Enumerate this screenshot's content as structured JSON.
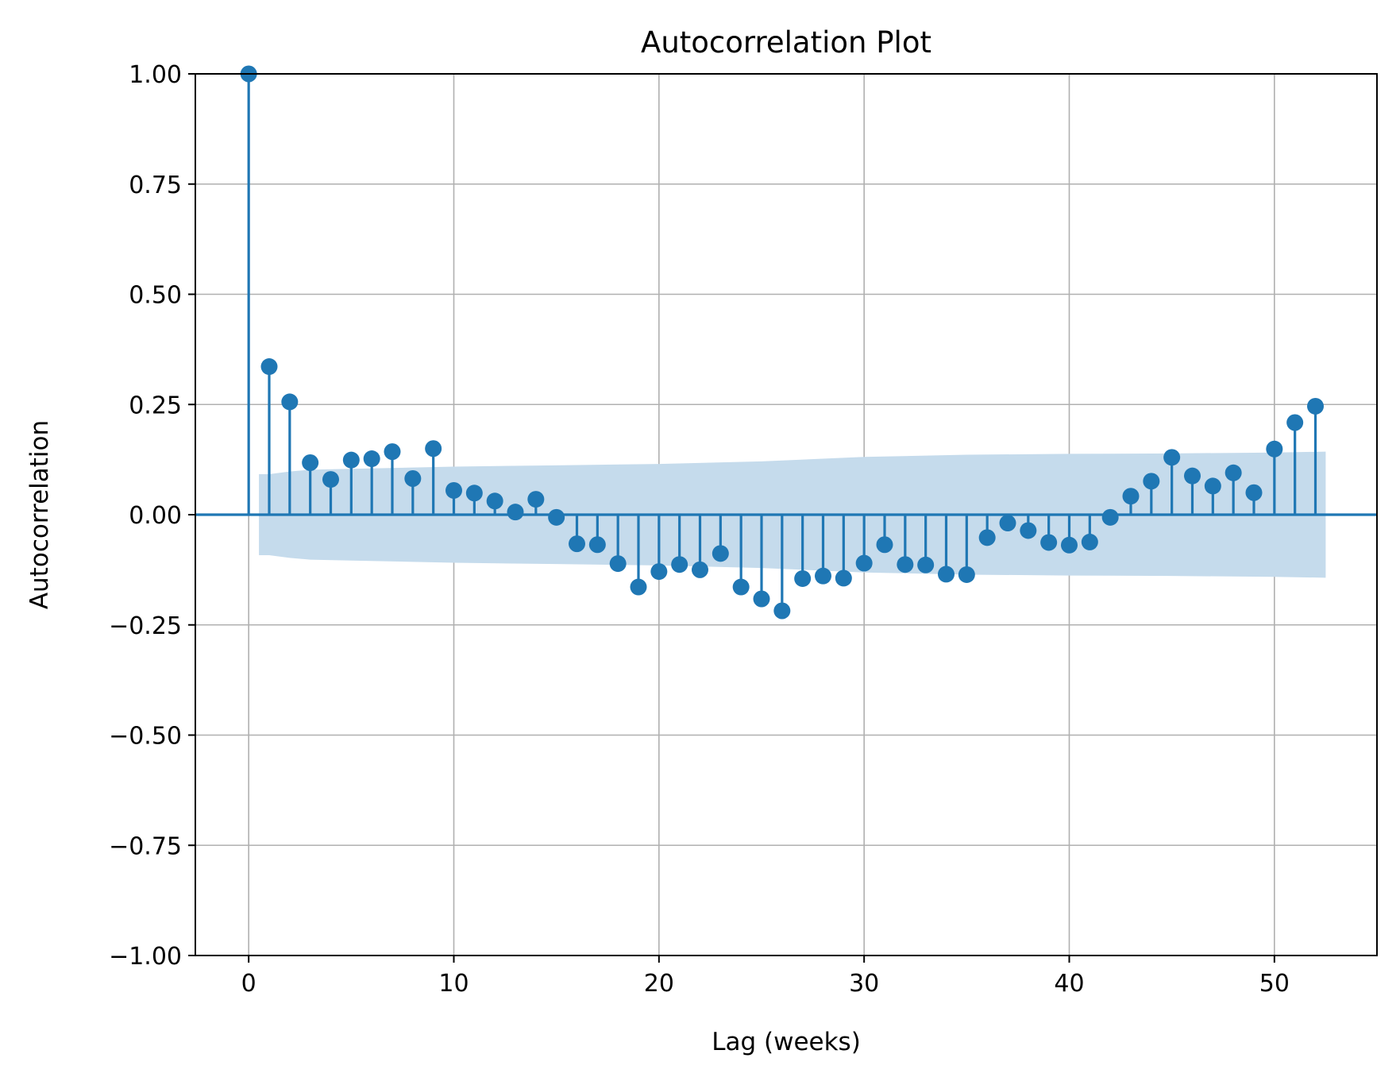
{
  "chart_data": {
    "type": "stem",
    "title": "Autocorrelation Plot",
    "xlabel": "Lag (weeks)",
    "ylabel": "Autocorrelation",
    "xlim": [
      -2.6,
      55
    ],
    "ylim": [
      -1.0,
      1.0
    ],
    "xticks": [
      0,
      10,
      20,
      30,
      40,
      50
    ],
    "xtick_labels": [
      "0",
      "10",
      "20",
      "30",
      "40",
      "50"
    ],
    "yticks": [
      -1.0,
      -0.75,
      -0.5,
      -0.25,
      0.0,
      0.25,
      0.5,
      0.75,
      1.0
    ],
    "ytick_labels": [
      "−1.00",
      "−0.75",
      "−0.50",
      "−0.25",
      "0.00",
      "0.25",
      "0.50",
      "0.75",
      "1.00"
    ],
    "grid": true,
    "colors": {
      "series": "#1f77b4",
      "band": "#c5dbec",
      "grid": "#b0b0b0"
    },
    "series": [
      {
        "lags": [
          0,
          1,
          2,
          3,
          4,
          5,
          6,
          7,
          8,
          9,
          10,
          11,
          12,
          13,
          14,
          15,
          16,
          17,
          18,
          19,
          20,
          21,
          22,
          23,
          24,
          25,
          26,
          27,
          28,
          29,
          30,
          31,
          32,
          33,
          34,
          35,
          36,
          37,
          38,
          39,
          40,
          41,
          42,
          43,
          44,
          45,
          46,
          47,
          48,
          49,
          50,
          51,
          52
        ],
        "acf": [
          1.0,
          0.336,
          0.256,
          0.118,
          0.08,
          0.124,
          0.127,
          0.143,
          0.082,
          0.15,
          0.055,
          0.049,
          0.031,
          0.006,
          0.035,
          -0.006,
          -0.066,
          -0.068,
          -0.111,
          -0.164,
          -0.129,
          -0.113,
          -0.125,
          -0.088,
          -0.164,
          -0.191,
          -0.218,
          -0.145,
          -0.139,
          -0.144,
          -0.11,
          -0.068,
          -0.113,
          -0.114,
          -0.135,
          -0.136,
          -0.052,
          -0.019,
          -0.036,
          -0.063,
          -0.069,
          -0.062,
          -0.006,
          0.042,
          0.076,
          0.13,
          0.088,
          0.065,
          0.095,
          0.05,
          0.149,
          0.209,
          0.246
        ]
      }
    ],
    "confidence_band": {
      "lags": [
        0.5,
        1,
        2,
        3,
        5,
        10,
        15,
        20,
        25,
        30,
        35,
        40,
        45,
        50,
        52.5
      ],
      "upper": [
        0.092,
        0.092,
        0.098,
        0.102,
        0.104,
        0.109,
        0.112,
        0.115,
        0.121,
        0.131,
        0.136,
        0.138,
        0.139,
        0.141,
        0.143
      ],
      "lower": [
        -0.092,
        -0.092,
        -0.098,
        -0.102,
        -0.104,
        -0.109,
        -0.112,
        -0.115,
        -0.121,
        -0.131,
        -0.136,
        -0.138,
        -0.139,
        -0.141,
        -0.143
      ]
    }
  }
}
